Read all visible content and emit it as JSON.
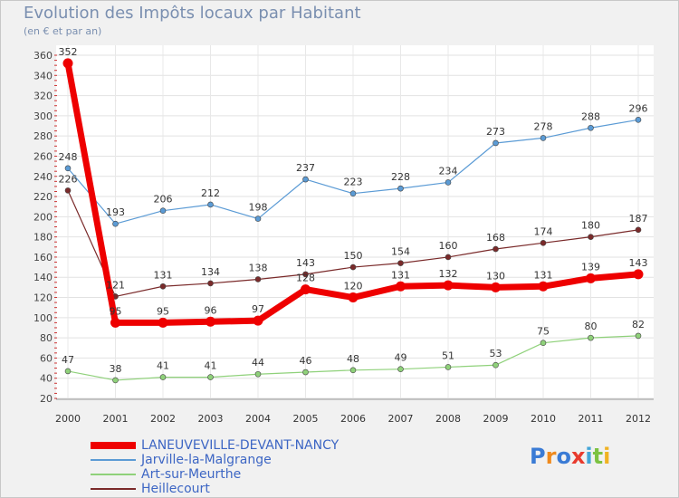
{
  "header": {
    "title": "Evolution des Impôts locaux par Habitant",
    "subtitle": "(en € et par an)"
  },
  "brand": {
    "letters": [
      {
        "ch": "P",
        "color": "#3a7bd5"
      },
      {
        "ch": "r",
        "color": "#ef8a1d"
      },
      {
        "ch": "o",
        "color": "#3a7bd5"
      },
      {
        "ch": "x",
        "color": "#e83b2e"
      },
      {
        "ch": "i",
        "color": "#42a5d8"
      },
      {
        "ch": "t",
        "color": "#7cc242"
      },
      {
        "ch": "i",
        "color": "#f0b323"
      }
    ]
  },
  "chart_data": {
    "type": "line",
    "title": "Evolution des Impôts locaux par Habitant",
    "subtitle": "(en € et par an)",
    "x": [
      "2000",
      "2001",
      "2002",
      "2003",
      "2004",
      "2005",
      "2006",
      "2007",
      "2008",
      "2009",
      "2010",
      "2011",
      "2012"
    ],
    "yticks": [
      20,
      40,
      60,
      80,
      100,
      120,
      140,
      160,
      180,
      200,
      220,
      240,
      260,
      280,
      300,
      320,
      340,
      360
    ],
    "ylim": [
      20,
      360
    ],
    "grid": true,
    "legend_position": "bottom-left",
    "series": [
      {
        "name": "LANEUVEVILLE-DEVANT-NANCY",
        "color": "#ee0000",
        "width": 7,
        "values": [
          352,
          95,
          95,
          96,
          97,
          128,
          120,
          131,
          132,
          130,
          131,
          139,
          143
        ]
      },
      {
        "name": "Jarville-la-Malgrange",
        "color": "#5b9bd5",
        "width": 1.2,
        "values": [
          248,
          193,
          206,
          212,
          198,
          237,
          223,
          228,
          234,
          273,
          278,
          288,
          296
        ]
      },
      {
        "name": "Art-sur-Meurthe",
        "color": "#8fd17a",
        "width": 1.2,
        "values": [
          47,
          38,
          41,
          41,
          44,
          46,
          48,
          49,
          51,
          53,
          75,
          80,
          82
        ]
      },
      {
        "name": "Heillecourt",
        "color": "#7a2a2a",
        "width": 1.2,
        "values": [
          226,
          121,
          131,
          134,
          138,
          143,
          150,
          154,
          160,
          168,
          174,
          180,
          187
        ]
      }
    ]
  }
}
